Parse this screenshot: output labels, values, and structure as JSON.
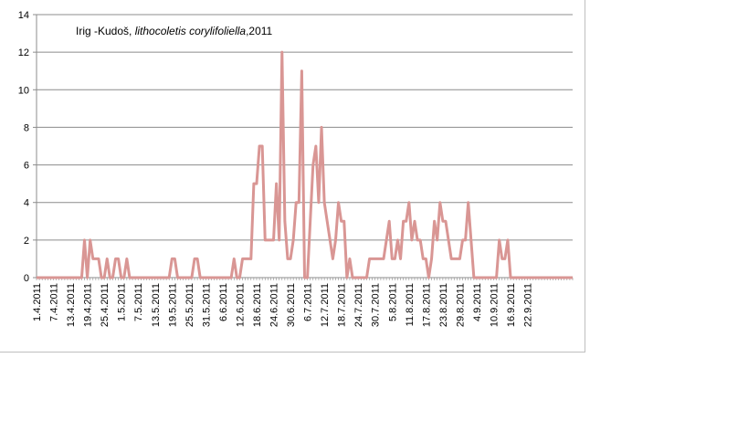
{
  "chart_data": {
    "type": "line",
    "title_parts": [
      "Irig -Kudoš, ",
      "lithocoletis corylifoliella",
      ",2011"
    ],
    "xlabel": "",
    "ylabel": "",
    "ylim": [
      0,
      14
    ],
    "yticks": [
      0,
      2,
      4,
      6,
      8,
      10,
      12,
      14
    ],
    "grid": true,
    "legend": "none",
    "line_color": "#d99694",
    "x_start": "1.4.2011",
    "x_end": "27.9.2011",
    "xtick_labels": [
      "1.4.2011",
      "7.4.2011",
      "13.4.2011",
      "19.4.2011",
      "25.4.2011",
      "1.5.2011",
      "7.5.2011",
      "13.5.2011",
      "19.5.2011",
      "25.5.2011",
      "31.5.2011",
      "6.6.2011",
      "12.6.2011",
      "18.6.2011",
      "24.6.2011",
      "30.6.2011",
      "6.7.2011",
      "12.7.2011",
      "18.7.2011",
      "24.7.2011",
      "30.7.2011",
      "5.8.2011",
      "11.8.2011",
      "17.8.2011",
      "23.8.2011",
      "29.8.2011",
      "4.9.2011",
      "10.9.2011",
      "16.9.2011",
      "22.9.2011"
    ],
    "series": [
      {
        "values": [
          0,
          0,
          0,
          0,
          0,
          0,
          0,
          0,
          0,
          0,
          0,
          0,
          0,
          0,
          0,
          0,
          0,
          2,
          0,
          2,
          1,
          1,
          1,
          0,
          0,
          1,
          0,
          0,
          1,
          1,
          0,
          0,
          1,
          0,
          0,
          0,
          0,
          0,
          0,
          0,
          0,
          0,
          0,
          0,
          0,
          0,
          0,
          0,
          1,
          1,
          0,
          0,
          0,
          0,
          0,
          0,
          1,
          1,
          0,
          0,
          0,
          0,
          0,
          0,
          0,
          0,
          0,
          0,
          0,
          0,
          1,
          0,
          0,
          1,
          1,
          1,
          1,
          5,
          5,
          7,
          7,
          2,
          2,
          2,
          2,
          5,
          2,
          12,
          3,
          1,
          1,
          2,
          4,
          4,
          11,
          0,
          0,
          3,
          6,
          7,
          4,
          8,
          4,
          3,
          2,
          1,
          2,
          4,
          3,
          3,
          0,
          1,
          0,
          0,
          0,
          0,
          0,
          0,
          1,
          1,
          1,
          1,
          1,
          1,
          2,
          3,
          1,
          1,
          2,
          1,
          3,
          3,
          4,
          2,
          3,
          2,
          2,
          1,
          1,
          0,
          1,
          3,
          2,
          4,
          3,
          3,
          2,
          1,
          1,
          1,
          1,
          2,
          2,
          4,
          2,
          0,
          0,
          0,
          0,
          0,
          0,
          0,
          0,
          0,
          2,
          1,
          1,
          2,
          0,
          0,
          0,
          0,
          0,
          0,
          0,
          0,
          0,
          0,
          0,
          0,
          0,
          0,
          0,
          0,
          0,
          0,
          0,
          0,
          0,
          0,
          0
        ]
      }
    ]
  }
}
